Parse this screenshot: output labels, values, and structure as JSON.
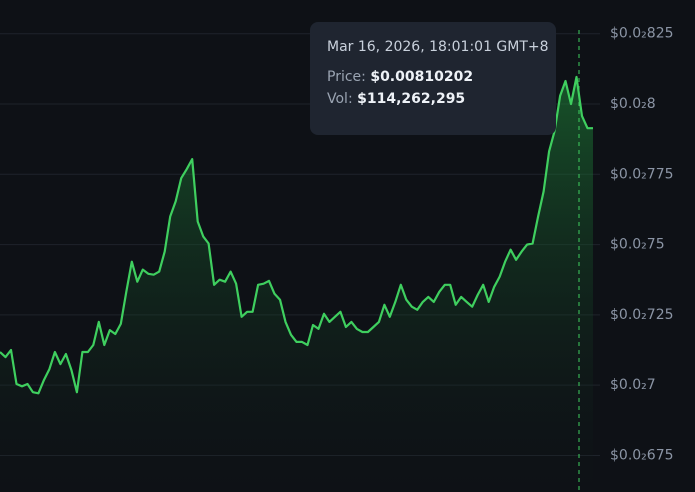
{
  "chart_data": {
    "type": "line",
    "color": "#3fcf5f",
    "ylim": [
      0.00662,
      0.00837
    ],
    "yticks": [
      {
        "value": 0.00825,
        "label": "$0.0₂825"
      },
      {
        "value": 0.008,
        "label": "$0.0₂8"
      },
      {
        "value": 0.00775,
        "label": "$0.0₂775"
      },
      {
        "value": 0.0075,
        "label": "$0.0₂75"
      },
      {
        "value": 0.00725,
        "label": "$0.0₂725"
      },
      {
        "value": 0.007,
        "label": "$0.0₂7"
      },
      {
        "value": 0.00675,
        "label": "$0.0₂675"
      }
    ],
    "grid": true,
    "values": [
      0.007118,
      0.0071,
      0.007125,
      0.007004,
      0.006996,
      0.007004,
      0.006975,
      0.006971,
      0.007018,
      0.007057,
      0.007118,
      0.007075,
      0.007111,
      0.007054,
      0.006975,
      0.007118,
      0.007118,
      0.007143,
      0.007225,
      0.007143,
      0.007196,
      0.007182,
      0.007218,
      0.007332,
      0.007439,
      0.007368,
      0.007411,
      0.007396,
      0.007393,
      0.007404,
      0.007475,
      0.0076,
      0.007654,
      0.007736,
      0.007768,
      0.007804,
      0.007582,
      0.007529,
      0.007504,
      0.007357,
      0.007375,
      0.007368,
      0.007404,
      0.007361,
      0.007243,
      0.007261,
      0.007261,
      0.007357,
      0.007361,
      0.007371,
      0.007325,
      0.007304,
      0.007225,
      0.007179,
      0.007154,
      0.007154,
      0.007143,
      0.007214,
      0.0072,
      0.007254,
      0.007225,
      0.007243,
      0.007261,
      0.007207,
      0.007225,
      0.0072,
      0.007189,
      0.007189,
      0.007207,
      0.007225,
      0.007286,
      0.007243,
      0.007296,
      0.007357,
      0.007304,
      0.007279,
      0.007268,
      0.007296,
      0.007314,
      0.007296,
      0.007332,
      0.007357,
      0.007357,
      0.007286,
      0.007314,
      0.007296,
      0.007279,
      0.007321,
      0.007357,
      0.007296,
      0.00735,
      0.007386,
      0.007439,
      0.007482,
      0.007446,
      0.007475,
      0.0075,
      0.007504,
      0.0076,
      0.007689,
      0.007832,
      0.007904,
      0.008029,
      0.008082,
      0.008,
      0.008096,
      0.007957,
      0.007914,
      0.007914
    ],
    "tooltip": {
      "date": "Mar 16, 2026, 18:01:01 GMT+8",
      "price_label": "Price:",
      "price": "$0.00810202",
      "vol_label": "Vol:",
      "vol": "$114,262,295"
    }
  }
}
